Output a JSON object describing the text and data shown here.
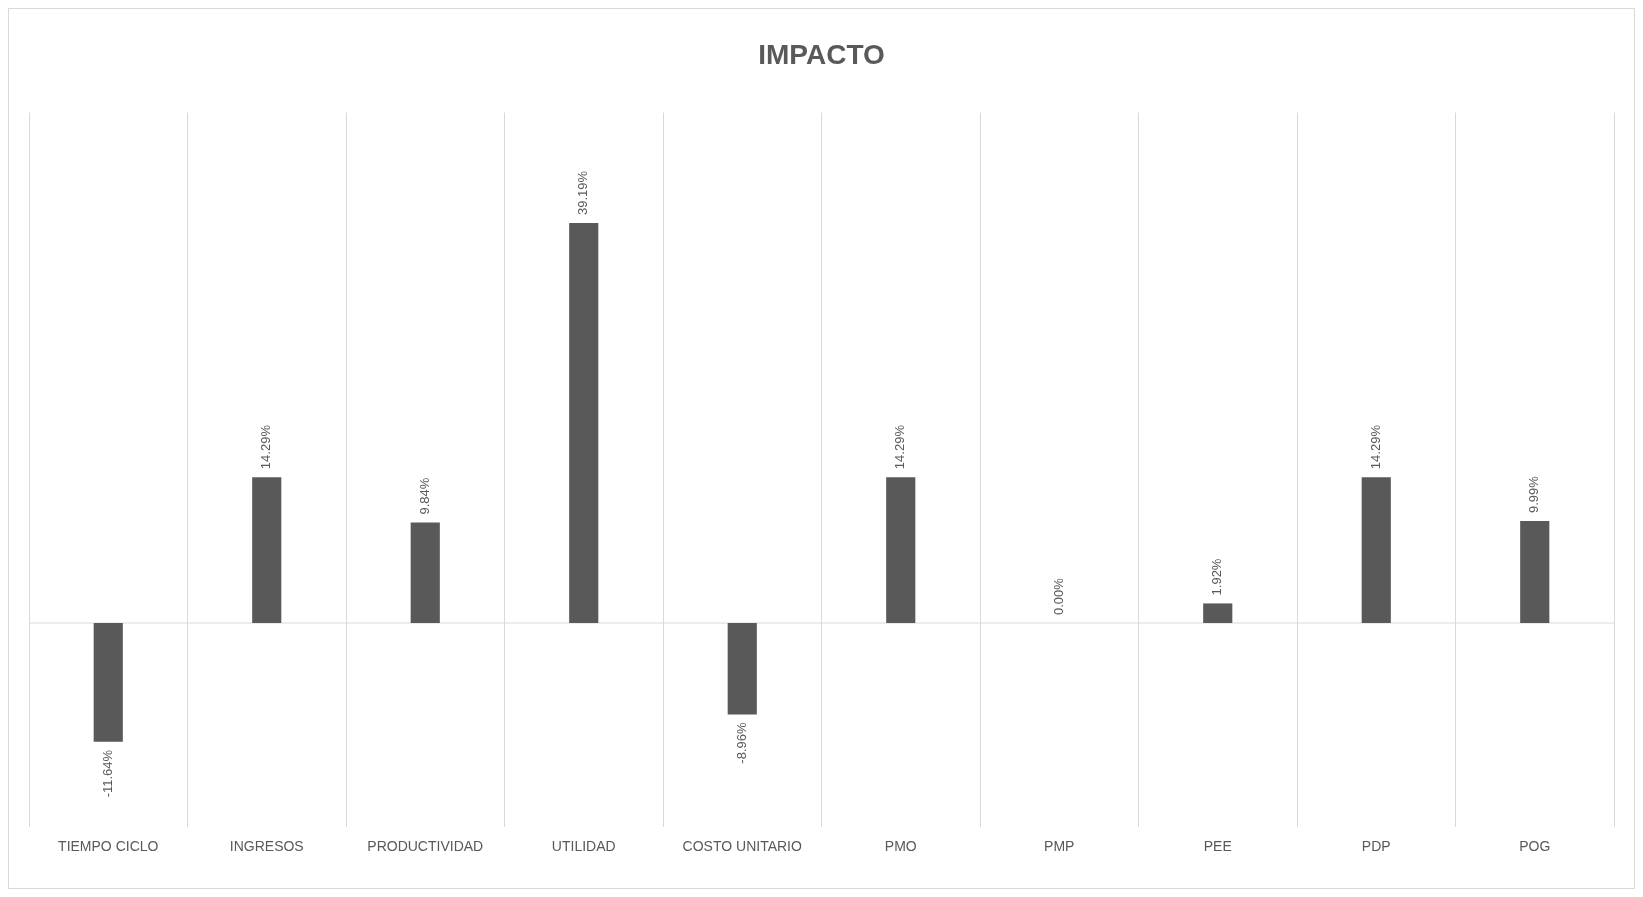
{
  "chart_data": {
    "type": "bar",
    "title": "IMPACTO",
    "tick_labels": "x",
    "grid": "x",
    "color": "#595959",
    "categories": [
      "TIEMPO CICLO",
      "INGRESOS",
      "PRODUCTIVIDAD",
      "UTILIDAD",
      "COSTO UNITARIO",
      "PMO",
      "PMP",
      "PEE",
      "PDP",
      "POG"
    ],
    "values": [
      -11.64,
      14.29,
      9.84,
      39.19,
      -8.96,
      14.29,
      0.0,
      1.92,
      14.29,
      9.99
    ],
    "value_labels": [
      "-11.64%",
      "14.29%",
      "9.84%",
      "39.19%",
      "-8.96%",
      "14.29%",
      "0.00%",
      "1.92%",
      "14.29%",
      "9.99%"
    ]
  }
}
